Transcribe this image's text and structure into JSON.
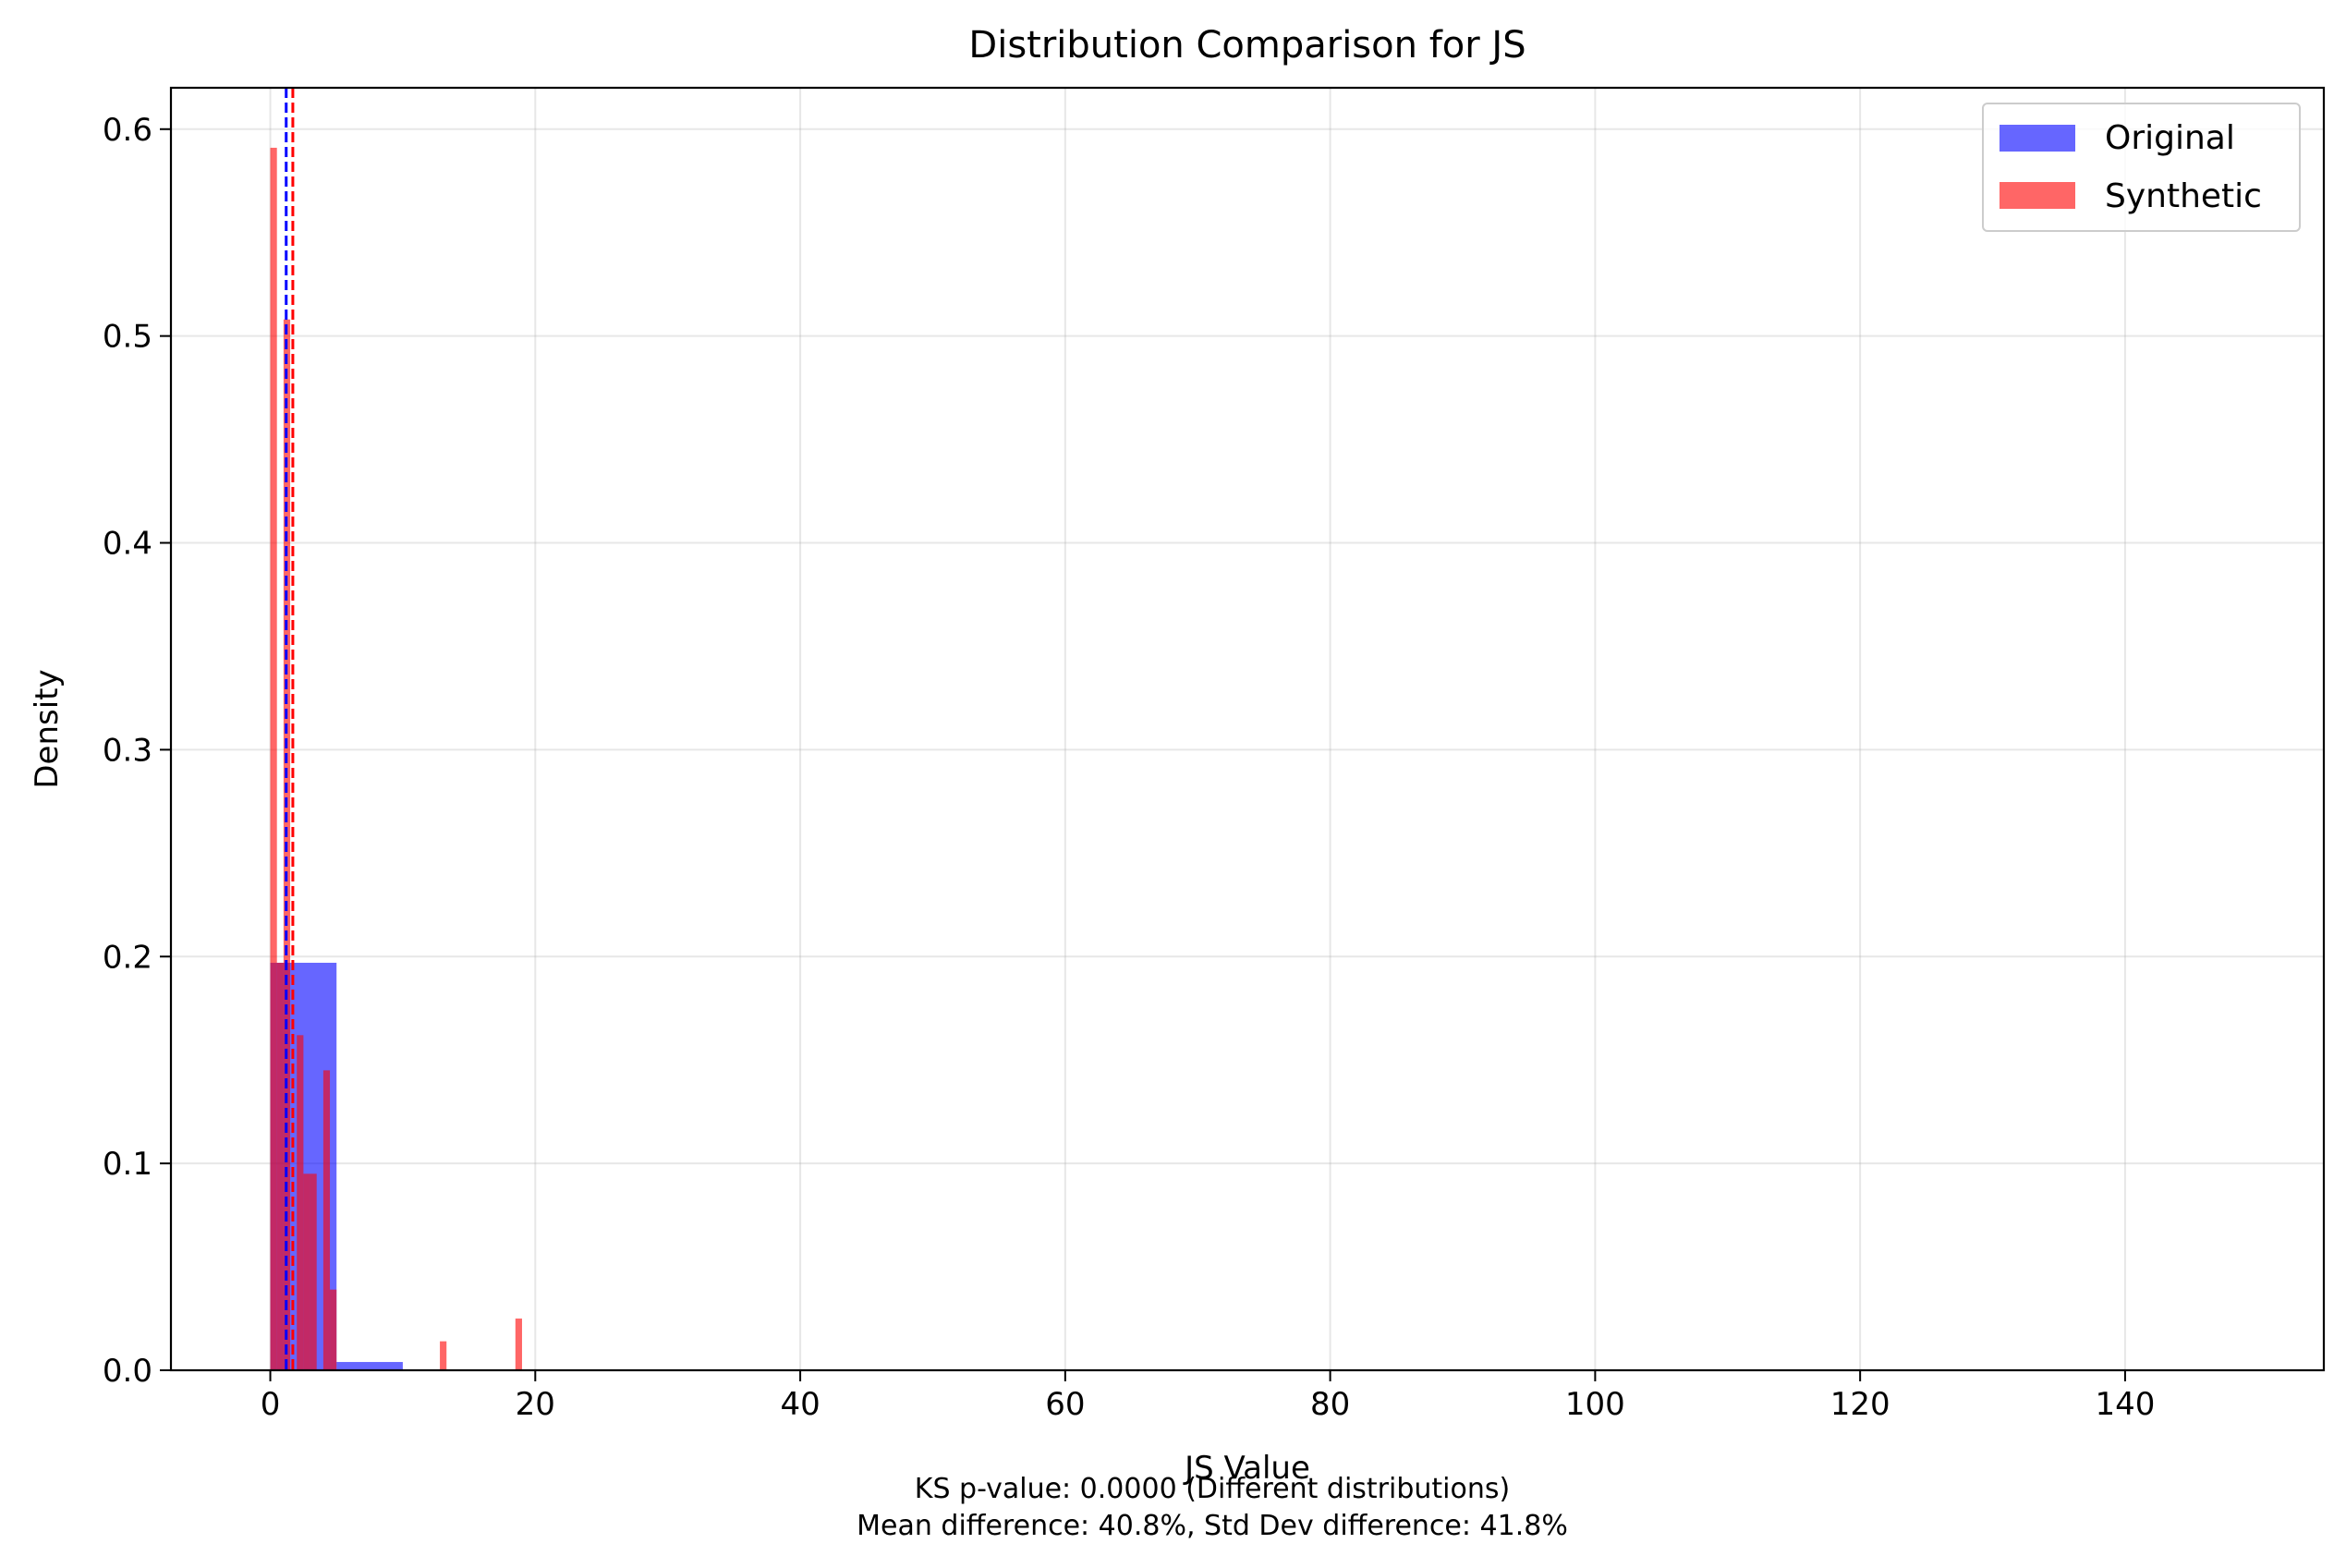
{
  "chart_data": {
    "type": "bar",
    "title": "Distribution Comparison for JS",
    "xlabel": "JS Value",
    "ylabel": "Density",
    "xlim": [
      -7.5,
      155
    ],
    "ylim": [
      0,
      0.62
    ],
    "x_ticks": [
      0,
      20,
      40,
      60,
      80,
      100,
      120,
      140
    ],
    "y_ticks": [
      0.0,
      0.1,
      0.2,
      0.3,
      0.4,
      0.5,
      0.6
    ],
    "x_tick_labels": [
      "0",
      "20",
      "40",
      "60",
      "80",
      "100",
      "120",
      "140"
    ],
    "y_tick_labels": [
      "0.0",
      "0.1",
      "0.2",
      "0.3",
      "0.4",
      "0.5",
      "0.6"
    ],
    "grid": true,
    "legend_position": "top-right",
    "series": [
      {
        "name": "Original",
        "color": "#0000ff",
        "opacity": 0.6,
        "bins": [
          {
            "x0": 0.0,
            "x1": 5.0,
            "value": 0.197
          },
          {
            "x0": 5.0,
            "x1": 10.0,
            "value": 0.004
          }
        ],
        "mean": 1.2
      },
      {
        "name": "Synthetic",
        "color": "#ff0000",
        "opacity": 0.6,
        "bins": [
          {
            "x0": 0.0,
            "x1": 0.5,
            "value": 0.591
          },
          {
            "x0": 0.5,
            "x1": 1.0,
            "value": 0.197
          },
          {
            "x0": 1.0,
            "x1": 1.5,
            "value": 0.508
          },
          {
            "x0": 2.0,
            "x1": 2.5,
            "value": 0.162
          },
          {
            "x0": 2.5,
            "x1": 3.0,
            "value": 0.095
          },
          {
            "x0": 3.0,
            "x1": 3.5,
            "value": 0.095
          },
          {
            "x0": 3.5,
            "x1": 4.0,
            "value": 0.0
          },
          {
            "x0": 4.0,
            "x1": 4.5,
            "value": 0.145
          },
          {
            "x0": 4.5,
            "x1": 5.0,
            "value": 0.039
          },
          {
            "x0": 12.8,
            "x1": 13.3,
            "value": 0.014
          },
          {
            "x0": 18.5,
            "x1": 19.0,
            "value": 0.025
          }
        ],
        "mean": 1.7
      }
    ],
    "annotations": [
      "KS p-value: 0.0000 (Different distributions)",
      "Mean difference: 40.8%, Std Dev difference: 41.8%"
    ]
  }
}
